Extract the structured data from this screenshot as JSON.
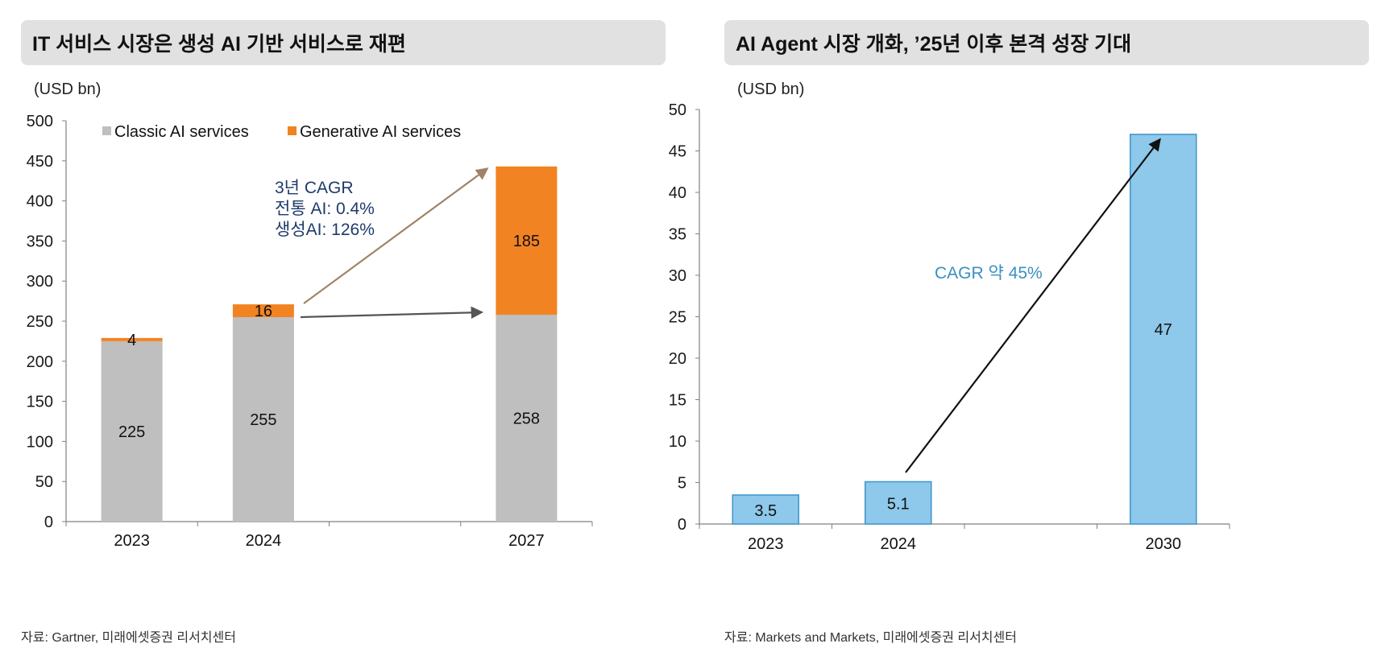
{
  "left_panel": {
    "title": "IT 서비스 시장은 생성 AI 기반 서비스로 재편",
    "unit": "(USD bn)",
    "source": "자료: Gartner, 미래에셋증권 리서치센터",
    "annotation_lines": [
      "3년 CAGR",
      "전통 AI: 0.4%",
      "생성AI: 126%"
    ]
  },
  "right_panel": {
    "title": "AI Agent 시장 개화, ’25년 이후 본격 성장 기대",
    "unit": "(USD bn)",
    "source": "자료: Markets and Markets, 미래에셋증권 리서치센터",
    "annotation": "CAGR 약 45%"
  },
  "colors": {
    "classic": "#bfbfbf",
    "generative": "#f28322",
    "agent_fill": "#8ec8ea",
    "agent_stroke": "#3d95cc",
    "annotation_navy": "#1f3a6b",
    "annotation_blue": "#3a8fc2",
    "arrow_brown": "#a08266",
    "arrow_dark": "#555555"
  },
  "chart_data": [
    {
      "type": "bar",
      "stacked": true,
      "categories": [
        "2023",
        "2024",
        "2027"
      ],
      "series": [
        {
          "name": "Classic AI services",
          "values": [
            225,
            255,
            258
          ]
        },
        {
          "name": "Generative AI services",
          "values": [
            4,
            16,
            185
          ]
        }
      ],
      "ylim": [
        0,
        500
      ],
      "yticks": [
        0,
        50,
        100,
        150,
        200,
        250,
        300,
        350,
        400,
        450,
        500
      ],
      "legend": "top-left",
      "grid": false
    },
    {
      "type": "bar",
      "categories": [
        "2023",
        "2024",
        "2030"
      ],
      "values": [
        3.5,
        5.1,
        47
      ],
      "ylim": [
        0,
        50
      ],
      "yticks": [
        0,
        5,
        10,
        15,
        20,
        25,
        30,
        35,
        40,
        45,
        50
      ],
      "grid": false
    }
  ]
}
